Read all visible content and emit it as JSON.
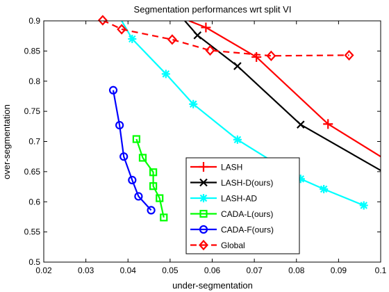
{
  "chart_data": {
    "type": "line",
    "title": "Segmentation performances wrt split VI",
    "xlabel": "under-segmentation",
    "ylabel": "over-segmentation",
    "xlim": [
      0.02,
      0.1
    ],
    "ylim": [
      0.5,
      0.9
    ],
    "xticks": [
      "0.02",
      "0.03",
      "0.04",
      "0.05",
      "0.06",
      "0.07",
      "0.08",
      "0.09",
      "0.1"
    ],
    "yticks": [
      "0.5",
      "0.55",
      "0.6",
      "0.65",
      "0.7",
      "0.75",
      "0.8",
      "0.85",
      "0.9"
    ],
    "legend_position": "lower-right",
    "grid": false,
    "series": [
      {
        "name": "LASH",
        "color": "#ff0000",
        "marker": "plus",
        "dash": "solid",
        "x": [
          0.0545,
          0.0585,
          0.0705,
          0.0875,
          0.1
        ],
        "y": [
          0.9,
          0.889,
          0.84,
          0.729,
          0.675
        ],
        "marker_x": [
          0.0585,
          0.0705,
          0.0875
        ],
        "marker_y": [
          0.889,
          0.84,
          0.729
        ]
      },
      {
        "name": "LASH-D(ours)",
        "color": "#000000",
        "marker": "x",
        "dash": "solid",
        "x": [
          0.0535,
          0.0565,
          0.066,
          0.081,
          0.1
        ],
        "y": [
          0.9,
          0.876,
          0.825,
          0.728,
          0.652
        ],
        "marker_x": [
          0.0565,
          0.066,
          0.081
        ],
        "marker_y": [
          0.876,
          0.825,
          0.728
        ]
      },
      {
        "name": "LASH-AD",
        "color": "#00ffff",
        "marker": "star",
        "dash": "solid",
        "x": [
          0.0385,
          0.041,
          0.049,
          0.0555,
          0.066,
          0.081,
          0.0865,
          0.096
        ],
        "y": [
          0.9,
          0.87,
          0.812,
          0.762,
          0.703,
          0.638,
          0.621,
          0.594
        ],
        "marker_x": [
          0.041,
          0.049,
          0.0555,
          0.066,
          0.081,
          0.0865,
          0.096
        ],
        "marker_y": [
          0.87,
          0.812,
          0.762,
          0.703,
          0.638,
          0.621,
          0.594
        ]
      },
      {
        "name": "CADA-L(ours)",
        "color": "#00ff00",
        "marker": "square",
        "dash": "solid",
        "x": [
          0.042,
          0.0435,
          0.046,
          0.046,
          0.0475,
          0.0485
        ],
        "y": [
          0.704,
          0.673,
          0.649,
          0.626,
          0.606,
          0.574
        ],
        "marker_x": [
          0.042,
          0.0435,
          0.046,
          0.046,
          0.0475,
          0.0485
        ],
        "marker_y": [
          0.704,
          0.673,
          0.649,
          0.626,
          0.606,
          0.574
        ]
      },
      {
        "name": "CADA-F(ours)",
        "color": "#0000ff",
        "marker": "circle",
        "dash": "solid",
        "x": [
          0.0365,
          0.038,
          0.039,
          0.041,
          0.0425,
          0.0455
        ],
        "y": [
          0.785,
          0.727,
          0.675,
          0.636,
          0.609,
          0.586
        ],
        "marker_x": [
          0.0365,
          0.038,
          0.039,
          0.041,
          0.0425,
          0.0455
        ],
        "marker_y": [
          0.785,
          0.727,
          0.675,
          0.636,
          0.609,
          0.586
        ]
      },
      {
        "name": "Global",
        "color": "#ff0000",
        "marker": "diamond",
        "dash": "dashed",
        "x": [
          0.034,
          0.0385,
          0.0505,
          0.0595,
          0.074,
          0.0925
        ],
        "y": [
          0.901,
          0.886,
          0.869,
          0.851,
          0.842,
          0.843
        ],
        "marker_x": [
          0.034,
          0.0385,
          0.0505,
          0.0595,
          0.074,
          0.0925
        ],
        "marker_y": [
          0.901,
          0.886,
          0.869,
          0.851,
          0.842,
          0.843
        ]
      }
    ]
  }
}
